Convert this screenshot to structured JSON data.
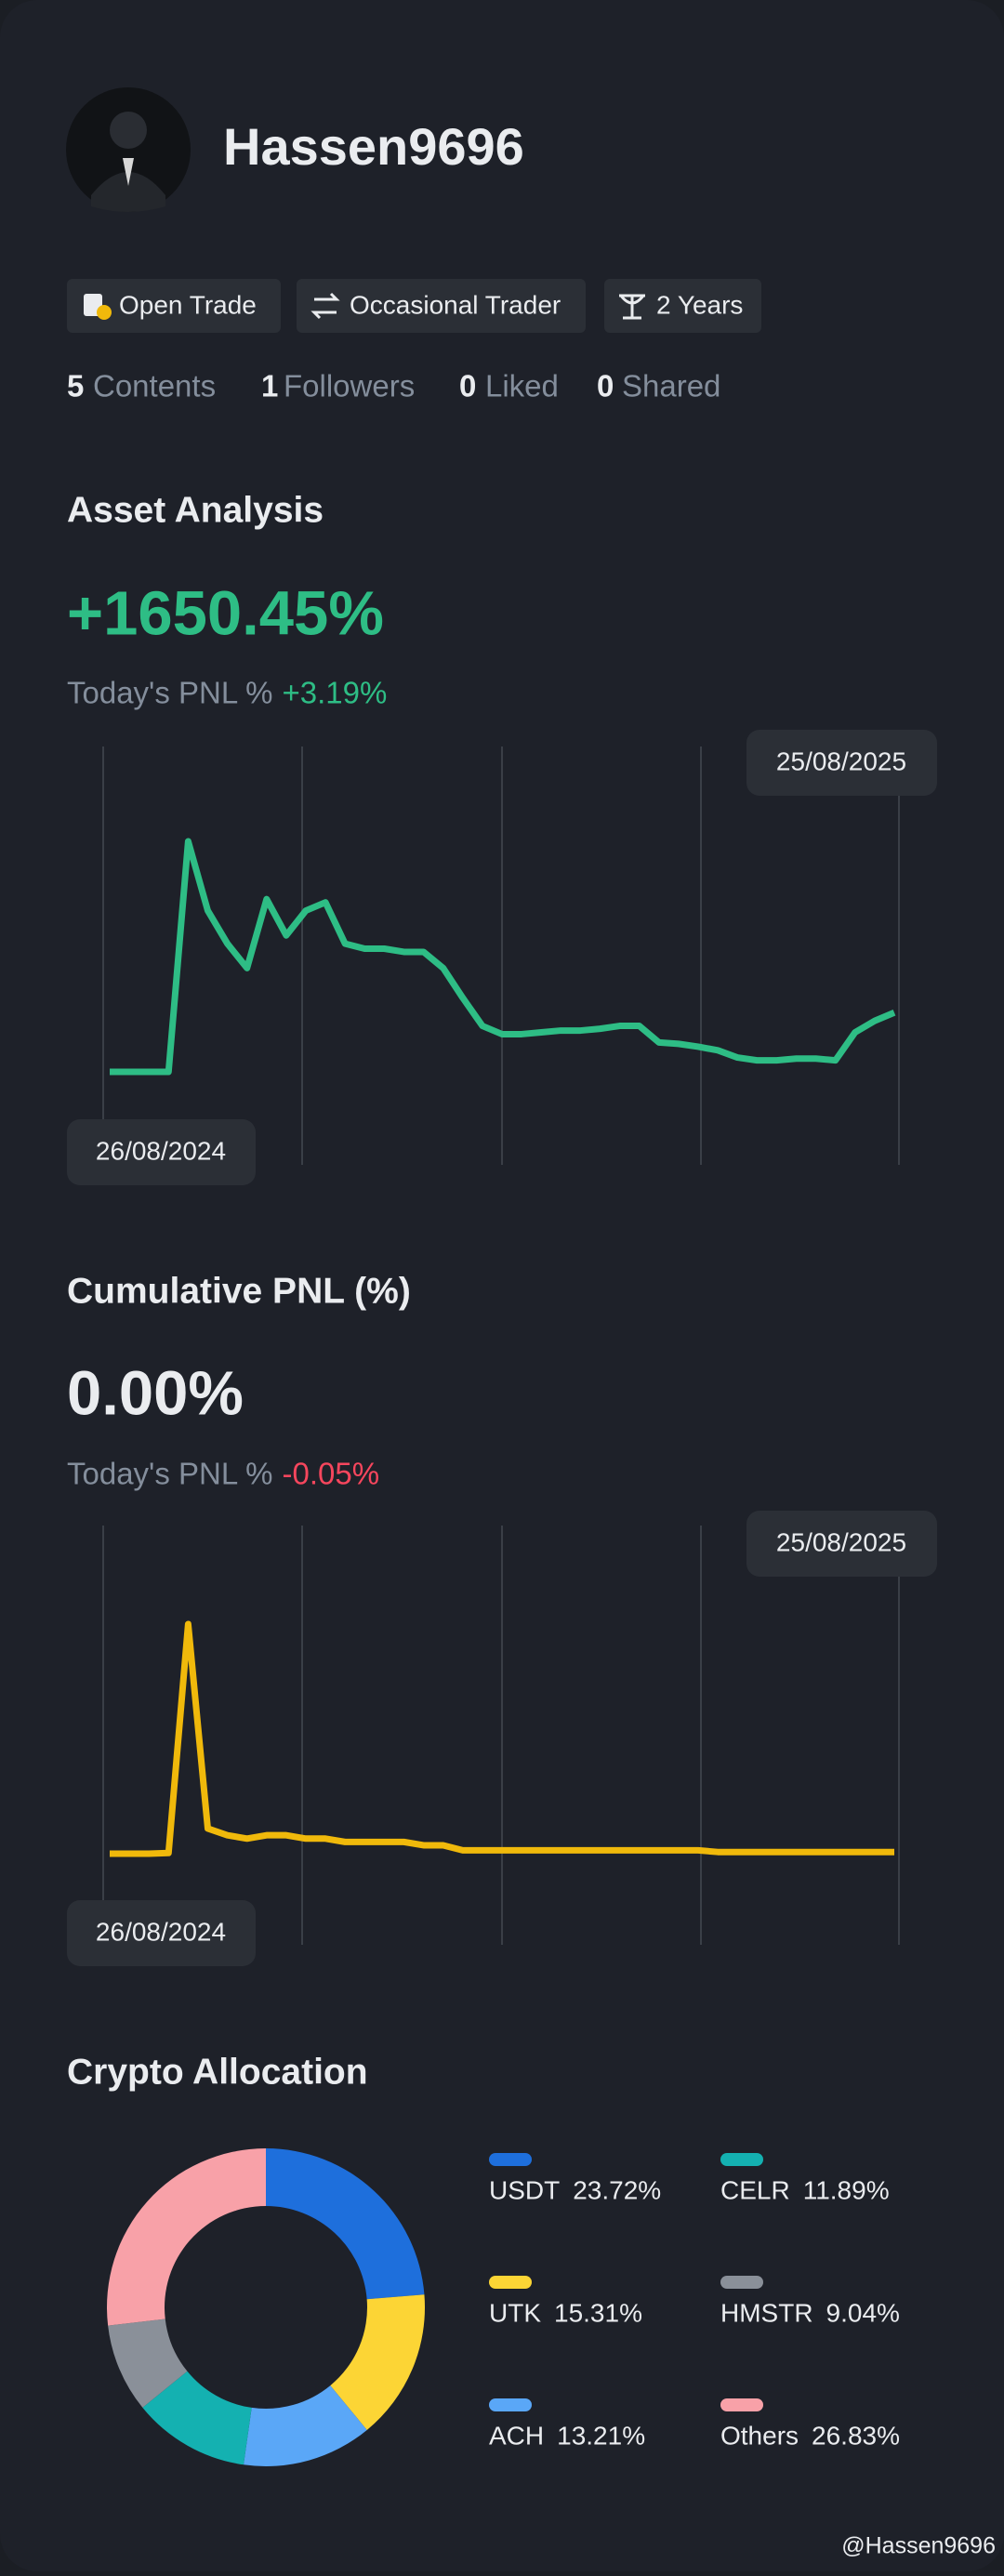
{
  "profile": {
    "name": "Hassen9696",
    "badges": [
      "Open Trade",
      "Occasional Trader",
      "2 Years"
    ],
    "stats": [
      {
        "count": "5",
        "label": "Contents"
      },
      {
        "count": "1",
        "label": "Followers"
      },
      {
        "count": "0",
        "label": "Liked"
      },
      {
        "count": "0",
        "label": "Shared"
      }
    ]
  },
  "chart_data": [
    {
      "type": "line",
      "title": "Asset Analysis",
      "headline": "+1650.45%",
      "subtitle": "Today's PNL %",
      "subtitle_value": "+3.19%",
      "start_label": "26/08/2024",
      "end_label": "25/08/2025",
      "series": [
        {
          "color": "#2ebd85",
          "values": [
            0,
            0,
            0,
            0,
            6420,
            4490,
            3570,
            2890,
            4810,
            3800,
            4490,
            4720,
            3570,
            3430,
            3430,
            3340,
            3340,
            2890,
            2060,
            1280,
            1050,
            1050,
            1100,
            1150,
            1150,
            1200,
            1280,
            1280,
            820,
            780,
            700,
            600,
            400,
            320,
            320,
            370,
            370,
            320,
            1100,
            1420,
            1650.45
          ]
        }
      ]
    },
    {
      "type": "line",
      "title": "Cumulative PNL (%)",
      "headline": "0.00%",
      "subtitle": "Today's PNL %",
      "subtitle_value": "-0.05%",
      "start_label": "26/08/2024",
      "end_label": "25/08/2025",
      "series": [
        {
          "color": "#f0b90b",
          "values": [
            -0.5,
            -0.5,
            -0.5,
            -0.3,
            68,
            7,
            5,
            4,
            5,
            5,
            4,
            4,
            3,
            3,
            3,
            3,
            2,
            2,
            0.5,
            0.5,
            0.5,
            0.5,
            0.5,
            0.5,
            0.5,
            0.5,
            0.5,
            0.5,
            0.5,
            0.5,
            0.5,
            0,
            0,
            0,
            0,
            0,
            0,
            0,
            0,
            0,
            0
          ]
        }
      ]
    },
    {
      "type": "pie",
      "title": "Crypto Allocation",
      "categories": [
        "USDT",
        "UTK",
        "ACH",
        "CELR",
        "HMSTR",
        "Others"
      ],
      "values": [
        23.72,
        15.31,
        13.21,
        11.89,
        9.04,
        26.83
      ],
      "value_labels": [
        "23.72%",
        "15.31%",
        "13.21%",
        "11.89%",
        "9.04%",
        "26.83%"
      ],
      "colors": [
        "#1e6fdc",
        "#fcd535",
        "#5aa7f7",
        "#14b1b1",
        "#8a9099",
        "#f8a1a8"
      ]
    }
  ],
  "watermark": "@Hassen9696"
}
